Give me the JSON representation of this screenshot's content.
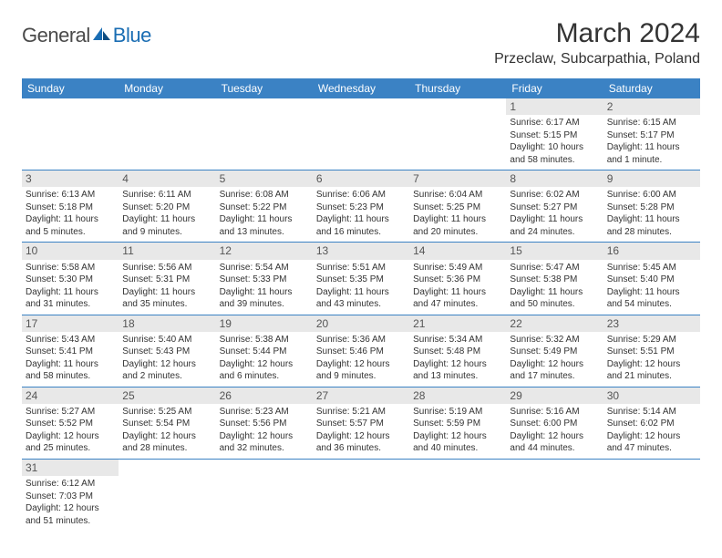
{
  "logo": {
    "text1": "General",
    "text2": "Blue"
  },
  "title": "March 2024",
  "location": "Przeclaw, Subcarpathia, Poland",
  "colors": {
    "header_bg": "#3b82c4",
    "header_fg": "#ffffff",
    "daynum_bg": "#e8e8e8",
    "border": "#3b82c4",
    "text": "#333333"
  },
  "day_headers": [
    "Sunday",
    "Monday",
    "Tuesday",
    "Wednesday",
    "Thursday",
    "Friday",
    "Saturday"
  ],
  "weeks": [
    [
      null,
      null,
      null,
      null,
      null,
      {
        "num": "1",
        "sunrise": "Sunrise: 6:17 AM",
        "sunset": "Sunset: 5:15 PM",
        "daylight1": "Daylight: 10 hours",
        "daylight2": "and 58 minutes."
      },
      {
        "num": "2",
        "sunrise": "Sunrise: 6:15 AM",
        "sunset": "Sunset: 5:17 PM",
        "daylight1": "Daylight: 11 hours",
        "daylight2": "and 1 minute."
      }
    ],
    [
      {
        "num": "3",
        "sunrise": "Sunrise: 6:13 AM",
        "sunset": "Sunset: 5:18 PM",
        "daylight1": "Daylight: 11 hours",
        "daylight2": "and 5 minutes."
      },
      {
        "num": "4",
        "sunrise": "Sunrise: 6:11 AM",
        "sunset": "Sunset: 5:20 PM",
        "daylight1": "Daylight: 11 hours",
        "daylight2": "and 9 minutes."
      },
      {
        "num": "5",
        "sunrise": "Sunrise: 6:08 AM",
        "sunset": "Sunset: 5:22 PM",
        "daylight1": "Daylight: 11 hours",
        "daylight2": "and 13 minutes."
      },
      {
        "num": "6",
        "sunrise": "Sunrise: 6:06 AM",
        "sunset": "Sunset: 5:23 PM",
        "daylight1": "Daylight: 11 hours",
        "daylight2": "and 16 minutes."
      },
      {
        "num": "7",
        "sunrise": "Sunrise: 6:04 AM",
        "sunset": "Sunset: 5:25 PM",
        "daylight1": "Daylight: 11 hours",
        "daylight2": "and 20 minutes."
      },
      {
        "num": "8",
        "sunrise": "Sunrise: 6:02 AM",
        "sunset": "Sunset: 5:27 PM",
        "daylight1": "Daylight: 11 hours",
        "daylight2": "and 24 minutes."
      },
      {
        "num": "9",
        "sunrise": "Sunrise: 6:00 AM",
        "sunset": "Sunset: 5:28 PM",
        "daylight1": "Daylight: 11 hours",
        "daylight2": "and 28 minutes."
      }
    ],
    [
      {
        "num": "10",
        "sunrise": "Sunrise: 5:58 AM",
        "sunset": "Sunset: 5:30 PM",
        "daylight1": "Daylight: 11 hours",
        "daylight2": "and 31 minutes."
      },
      {
        "num": "11",
        "sunrise": "Sunrise: 5:56 AM",
        "sunset": "Sunset: 5:31 PM",
        "daylight1": "Daylight: 11 hours",
        "daylight2": "and 35 minutes."
      },
      {
        "num": "12",
        "sunrise": "Sunrise: 5:54 AM",
        "sunset": "Sunset: 5:33 PM",
        "daylight1": "Daylight: 11 hours",
        "daylight2": "and 39 minutes."
      },
      {
        "num": "13",
        "sunrise": "Sunrise: 5:51 AM",
        "sunset": "Sunset: 5:35 PM",
        "daylight1": "Daylight: 11 hours",
        "daylight2": "and 43 minutes."
      },
      {
        "num": "14",
        "sunrise": "Sunrise: 5:49 AM",
        "sunset": "Sunset: 5:36 PM",
        "daylight1": "Daylight: 11 hours",
        "daylight2": "and 47 minutes."
      },
      {
        "num": "15",
        "sunrise": "Sunrise: 5:47 AM",
        "sunset": "Sunset: 5:38 PM",
        "daylight1": "Daylight: 11 hours",
        "daylight2": "and 50 minutes."
      },
      {
        "num": "16",
        "sunrise": "Sunrise: 5:45 AM",
        "sunset": "Sunset: 5:40 PM",
        "daylight1": "Daylight: 11 hours",
        "daylight2": "and 54 minutes."
      }
    ],
    [
      {
        "num": "17",
        "sunrise": "Sunrise: 5:43 AM",
        "sunset": "Sunset: 5:41 PM",
        "daylight1": "Daylight: 11 hours",
        "daylight2": "and 58 minutes."
      },
      {
        "num": "18",
        "sunrise": "Sunrise: 5:40 AM",
        "sunset": "Sunset: 5:43 PM",
        "daylight1": "Daylight: 12 hours",
        "daylight2": "and 2 minutes."
      },
      {
        "num": "19",
        "sunrise": "Sunrise: 5:38 AM",
        "sunset": "Sunset: 5:44 PM",
        "daylight1": "Daylight: 12 hours",
        "daylight2": "and 6 minutes."
      },
      {
        "num": "20",
        "sunrise": "Sunrise: 5:36 AM",
        "sunset": "Sunset: 5:46 PM",
        "daylight1": "Daylight: 12 hours",
        "daylight2": "and 9 minutes."
      },
      {
        "num": "21",
        "sunrise": "Sunrise: 5:34 AM",
        "sunset": "Sunset: 5:48 PM",
        "daylight1": "Daylight: 12 hours",
        "daylight2": "and 13 minutes."
      },
      {
        "num": "22",
        "sunrise": "Sunrise: 5:32 AM",
        "sunset": "Sunset: 5:49 PM",
        "daylight1": "Daylight: 12 hours",
        "daylight2": "and 17 minutes."
      },
      {
        "num": "23",
        "sunrise": "Sunrise: 5:29 AM",
        "sunset": "Sunset: 5:51 PM",
        "daylight1": "Daylight: 12 hours",
        "daylight2": "and 21 minutes."
      }
    ],
    [
      {
        "num": "24",
        "sunrise": "Sunrise: 5:27 AM",
        "sunset": "Sunset: 5:52 PM",
        "daylight1": "Daylight: 12 hours",
        "daylight2": "and 25 minutes."
      },
      {
        "num": "25",
        "sunrise": "Sunrise: 5:25 AM",
        "sunset": "Sunset: 5:54 PM",
        "daylight1": "Daylight: 12 hours",
        "daylight2": "and 28 minutes."
      },
      {
        "num": "26",
        "sunrise": "Sunrise: 5:23 AM",
        "sunset": "Sunset: 5:56 PM",
        "daylight1": "Daylight: 12 hours",
        "daylight2": "and 32 minutes."
      },
      {
        "num": "27",
        "sunrise": "Sunrise: 5:21 AM",
        "sunset": "Sunset: 5:57 PM",
        "daylight1": "Daylight: 12 hours",
        "daylight2": "and 36 minutes."
      },
      {
        "num": "28",
        "sunrise": "Sunrise: 5:19 AM",
        "sunset": "Sunset: 5:59 PM",
        "daylight1": "Daylight: 12 hours",
        "daylight2": "and 40 minutes."
      },
      {
        "num": "29",
        "sunrise": "Sunrise: 5:16 AM",
        "sunset": "Sunset: 6:00 PM",
        "daylight1": "Daylight: 12 hours",
        "daylight2": "and 44 minutes."
      },
      {
        "num": "30",
        "sunrise": "Sunrise: 5:14 AM",
        "sunset": "Sunset: 6:02 PM",
        "daylight1": "Daylight: 12 hours",
        "daylight2": "and 47 minutes."
      }
    ],
    [
      {
        "num": "31",
        "sunrise": "Sunrise: 6:12 AM",
        "sunset": "Sunset: 7:03 PM",
        "daylight1": "Daylight: 12 hours",
        "daylight2": "and 51 minutes."
      },
      null,
      null,
      null,
      null,
      null,
      null
    ]
  ]
}
